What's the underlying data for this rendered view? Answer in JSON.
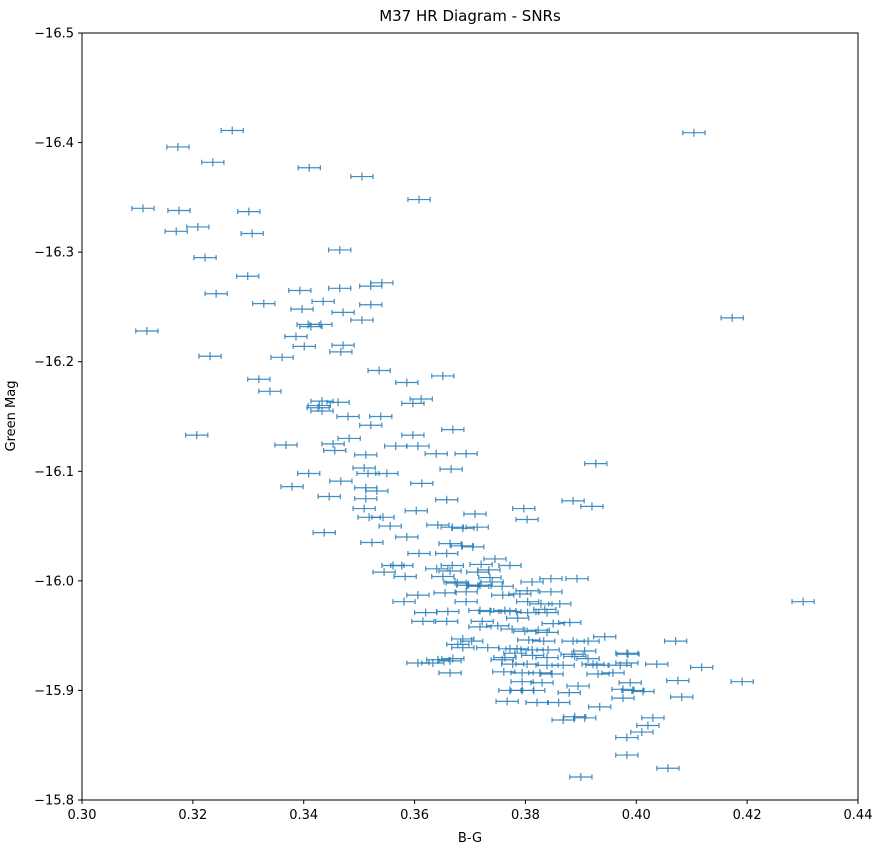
{
  "title": "M37 HR Diagram - SNRs",
  "chart_data": {
    "type": "scatter",
    "title": "M37 HR Diagram - SNRs",
    "xlabel": "B-G",
    "ylabel": "Green Mag",
    "xlim": [
      0.3,
      0.44
    ],
    "ylim": [
      -16.5,
      -15.8
    ],
    "y_axis_inverted": true,
    "grid": false,
    "legend": "none",
    "marker_color": "#1f77b4",
    "errorbar_style": "horizontal x-error bars with end caps and small vertical center tick",
    "xerr": 0.002,
    "x_ticks": [
      {
        "value": 0.3,
        "label": "0.30"
      },
      {
        "value": 0.32,
        "label": "0.32"
      },
      {
        "value": 0.34,
        "label": "0.34"
      },
      {
        "value": 0.36,
        "label": "0.36"
      },
      {
        "value": 0.38,
        "label": "0.38"
      },
      {
        "value": 0.4,
        "label": "0.40"
      },
      {
        "value": 0.42,
        "label": "0.42"
      },
      {
        "value": 0.44,
        "label": "0.44"
      }
    ],
    "y_ticks": [
      {
        "value": -16.5,
        "label": "−16.5"
      },
      {
        "value": -16.4,
        "label": "−16.4"
      },
      {
        "value": -16.3,
        "label": "−16.3"
      },
      {
        "value": -16.2,
        "label": "−16.2"
      },
      {
        "value": -16.1,
        "label": "−16.1"
      },
      {
        "value": -16.0,
        "label": "−16.0"
      },
      {
        "value": -15.9,
        "label": "−15.9"
      },
      {
        "value": -15.8,
        "label": "−15.8"
      }
    ],
    "points": [
      [
        0.3271,
        -16.411
      ],
      [
        0.4104,
        -16.409
      ],
      [
        0.3173,
        -16.396
      ],
      [
        0.3236,
        -16.382
      ],
      [
        0.341,
        -16.377
      ],
      [
        0.3505,
        -16.369
      ],
      [
        0.3608,
        -16.348
      ],
      [
        0.311,
        -16.34
      ],
      [
        0.3175,
        -16.338
      ],
      [
        0.3301,
        -16.337
      ],
      [
        0.3209,
        -16.323
      ],
      [
        0.317,
        -16.319
      ],
      [
        0.3307,
        -16.317
      ],
      [
        0.3465,
        -16.302
      ],
      [
        0.3222,
        -16.295
      ],
      [
        0.3299,
        -16.278
      ],
      [
        0.3541,
        -16.272
      ],
      [
        0.3521,
        -16.269
      ],
      [
        0.3465,
        -16.267
      ],
      [
        0.3393,
        -16.265
      ],
      [
        0.3242,
        -16.262
      ],
      [
        0.3435,
        -16.255
      ],
      [
        0.3328,
        -16.253
      ],
      [
        0.3521,
        -16.252
      ],
      [
        0.3397,
        -16.248
      ],
      [
        0.3471,
        -16.245
      ],
      [
        0.4173,
        -16.24
      ],
      [
        0.3505,
        -16.238
      ],
      [
        0.3408,
        -16.234
      ],
      [
        0.3431,
        -16.234
      ],
      [
        0.3413,
        -16.232
      ],
      [
        0.3117,
        -16.228
      ],
      [
        0.3386,
        -16.223
      ],
      [
        0.3471,
        -16.215
      ],
      [
        0.3401,
        -16.214
      ],
      [
        0.3467,
        -16.209
      ],
      [
        0.3231,
        -16.205
      ],
      [
        0.3361,
        -16.204
      ],
      [
        0.3536,
        -16.192
      ],
      [
        0.3651,
        -16.187
      ],
      [
        0.3319,
        -16.184
      ],
      [
        0.3586,
        -16.181
      ],
      [
        0.3339,
        -16.173
      ],
      [
        0.3612,
        -16.166
      ],
      [
        0.3433,
        -16.164
      ],
      [
        0.3462,
        -16.163
      ],
      [
        0.3597,
        -16.162
      ],
      [
        0.3428,
        -16.16
      ],
      [
        0.3426,
        -16.158
      ],
      [
        0.3433,
        -16.155
      ],
      [
        0.348,
        -16.15
      ],
      [
        0.3539,
        -16.15
      ],
      [
        0.3521,
        -16.142
      ],
      [
        0.3669,
        -16.138
      ],
      [
        0.3207,
        -16.133
      ],
      [
        0.3597,
        -16.133
      ],
      [
        0.3482,
        -16.13
      ],
      [
        0.3453,
        -16.125
      ],
      [
        0.3368,
        -16.124
      ],
      [
        0.3566,
        -16.123
      ],
      [
        0.3606,
        -16.123
      ],
      [
        0.3456,
        -16.119
      ],
      [
        0.3639,
        -16.116
      ],
      [
        0.3693,
        -16.116
      ],
      [
        0.3512,
        -16.115
      ],
      [
        0.3927,
        -16.107
      ],
      [
        0.3509,
        -16.103
      ],
      [
        0.3666,
        -16.102
      ],
      [
        0.3409,
        -16.098
      ],
      [
        0.3516,
        -16.098
      ],
      [
        0.355,
        -16.098
      ],
      [
        0.3467,
        -16.091
      ],
      [
        0.3613,
        -16.089
      ],
      [
        0.3379,
        -16.086
      ],
      [
        0.3512,
        -16.085
      ],
      [
        0.3532,
        -16.082
      ],
      [
        0.3446,
        -16.077
      ],
      [
        0.3512,
        -16.075
      ],
      [
        0.3658,
        -16.074
      ],
      [
        0.3886,
        -16.073
      ],
      [
        0.392,
        -16.068
      ],
      [
        0.3797,
        -16.066
      ],
      [
        0.3509,
        -16.066
      ],
      [
        0.3603,
        -16.064
      ],
      [
        0.3709,
        -16.061
      ],
      [
        0.3518,
        -16.058
      ],
      [
        0.3543,
        -16.058
      ],
      [
        0.3803,
        -16.056
      ],
      [
        0.3642,
        -16.051
      ],
      [
        0.3556,
        -16.05
      ],
      [
        0.3668,
        -16.049
      ],
      [
        0.3713,
        -16.049
      ],
      [
        0.3687,
        -16.048
      ],
      [
        0.3437,
        -16.044
      ],
      [
        0.3586,
        -16.04
      ],
      [
        0.3523,
        -16.035
      ],
      [
        0.3664,
        -16.034
      ],
      [
        0.3686,
        -16.032
      ],
      [
        0.3705,
        -16.031
      ],
      [
        0.3608,
        -16.025
      ],
      [
        0.3658,
        -16.025
      ],
      [
        0.3745,
        -16.02
      ],
      [
        0.372,
        -16.015
      ],
      [
        0.3561,
        -16.014
      ],
      [
        0.3577,
        -16.014
      ],
      [
        0.3772,
        -16.014
      ],
      [
        0.3668,
        -16.014
      ],
      [
        0.364,
        -16.011
      ],
      [
        0.3734,
        -16.01
      ],
      [
        0.3664,
        -16.009
      ],
      [
        0.3545,
        -16.008
      ],
      [
        0.3714,
        -16.008
      ],
      [
        0.3583,
        -16.004
      ],
      [
        0.3651,
        -16.004
      ],
      [
        0.3736,
        -16.003
      ],
      [
        0.3846,
        -16.002
      ],
      [
        0.3893,
        -16.002
      ],
      [
        0.3673,
        -15.999
      ],
      [
        0.374,
        -15.999
      ],
      [
        0.3812,
        -15.999
      ],
      [
        0.3677,
        -15.998
      ],
      [
        0.3696,
        -15.996
      ],
      [
        0.3718,
        -15.996
      ],
      [
        0.3714,
        -15.995
      ],
      [
        0.3758,
        -15.995
      ],
      [
        0.3803,
        -15.991
      ],
      [
        0.3846,
        -15.99
      ],
      [
        0.3693,
        -15.99
      ],
      [
        0.3655,
        -15.989
      ],
      [
        0.379,
        -15.988
      ],
      [
        0.3606,
        -15.987
      ],
      [
        0.3759,
        -15.987
      ],
      [
        0.3581,
        -15.981
      ],
      [
        0.3693,
        -15.981
      ],
      [
        0.3804,
        -15.981
      ],
      [
        0.4301,
        -15.981
      ],
      [
        0.3828,
        -15.979
      ],
      [
        0.3862,
        -15.979
      ],
      [
        0.3835,
        -15.974
      ],
      [
        0.3763,
        -15.973
      ],
      [
        0.3718,
        -15.973
      ],
      [
        0.362,
        -15.971
      ],
      [
        0.366,
        -15.972
      ],
      [
        0.3736,
        -15.972
      ],
      [
        0.3772,
        -15.972
      ],
      [
        0.3804,
        -15.971
      ],
      [
        0.3839,
        -15.971
      ],
      [
        0.3786,
        -15.966
      ],
      [
        0.3615,
        -15.963
      ],
      [
        0.3658,
        -15.963
      ],
      [
        0.3722,
        -15.963
      ],
      [
        0.388,
        -15.962
      ],
      [
        0.385,
        -15.961
      ],
      [
        0.375,
        -15.959
      ],
      [
        0.3718,
        -15.958
      ],
      [
        0.3776,
        -15.956
      ],
      [
        0.3823,
        -15.955
      ],
      [
        0.3799,
        -15.954
      ],
      [
        0.3839,
        -15.953
      ],
      [
        0.3943,
        -15.949
      ],
      [
        0.3687,
        -15.947
      ],
      [
        0.3806,
        -15.946
      ],
      [
        0.3703,
        -15.945
      ],
      [
        0.3833,
        -15.945
      ],
      [
        0.3886,
        -15.945
      ],
      [
        0.3913,
        -15.945
      ],
      [
        0.4071,
        -15.945
      ],
      [
        0.3678,
        -15.942
      ],
      [
        0.3732,
        -15.939
      ],
      [
        0.3687,
        -15.939
      ],
      [
        0.3772,
        -15.938
      ],
      [
        0.3785,
        -15.938
      ],
      [
        0.3812,
        -15.937
      ],
      [
        0.3841,
        -15.937
      ],
      [
        0.3907,
        -15.936
      ],
      [
        0.3781,
        -15.934
      ],
      [
        0.3983,
        -15.934
      ],
      [
        0.3813,
        -15.932
      ],
      [
        0.3884,
        -15.933
      ],
      [
        0.3985,
        -15.933
      ],
      [
        0.3763,
        -15.93
      ],
      [
        0.3839,
        -15.93
      ],
      [
        0.3889,
        -15.931
      ],
      [
        0.3913,
        -15.929
      ],
      [
        0.3669,
        -15.929
      ],
      [
        0.3642,
        -15.928
      ],
      [
        0.3758,
        -15.928
      ],
      [
        0.3664,
        -15.927
      ],
      [
        0.3606,
        -15.925
      ],
      [
        0.3633,
        -15.925
      ],
      [
        0.3983,
        -15.925
      ],
      [
        0.3777,
        -15.924
      ],
      [
        0.3803,
        -15.924
      ],
      [
        0.3922,
        -15.924
      ],
      [
        0.4037,
        -15.924
      ],
      [
        0.3839,
        -15.923
      ],
      [
        0.3868,
        -15.923
      ],
      [
        0.3971,
        -15.923
      ],
      [
        0.3929,
        -15.923
      ],
      [
        0.4118,
        -15.921
      ],
      [
        0.3761,
        -15.917
      ],
      [
        0.3664,
        -15.916
      ],
      [
        0.3794,
        -15.916
      ],
      [
        0.3826,
        -15.916
      ],
      [
        0.3958,
        -15.916
      ],
      [
        0.3848,
        -15.915
      ],
      [
        0.3931,
        -15.915
      ],
      [
        0.4075,
        -15.909
      ],
      [
        0.3794,
        -15.908
      ],
      [
        0.383,
        -15.907
      ],
      [
        0.3989,
        -15.907
      ],
      [
        0.4191,
        -15.908
      ],
      [
        0.3895,
        -15.904
      ],
      [
        0.3976,
        -15.901
      ],
      [
        0.3772,
        -15.9
      ],
      [
        0.3794,
        -15.9
      ],
      [
        0.3815,
        -15.9
      ],
      [
        0.3994,
        -15.9
      ],
      [
        0.3879,
        -15.898
      ],
      [
        0.4012,
        -15.899
      ],
      [
        0.4082,
        -15.894
      ],
      [
        0.3976,
        -15.893
      ],
      [
        0.3767,
        -15.89
      ],
      [
        0.3821,
        -15.889
      ],
      [
        0.386,
        -15.889
      ],
      [
        0.3934,
        -15.885
      ],
      [
        0.3889,
        -15.876
      ],
      [
        0.3907,
        -15.875
      ],
      [
        0.403,
        -15.875
      ],
      [
        0.3868,
        -15.873
      ],
      [
        0.4021,
        -15.868
      ],
      [
        0.401,
        -15.862
      ],
      [
        0.3983,
        -15.857
      ],
      [
        0.3983,
        -15.841
      ],
      [
        0.4057,
        -15.829
      ],
      [
        0.39,
        -15.821
      ]
    ]
  }
}
